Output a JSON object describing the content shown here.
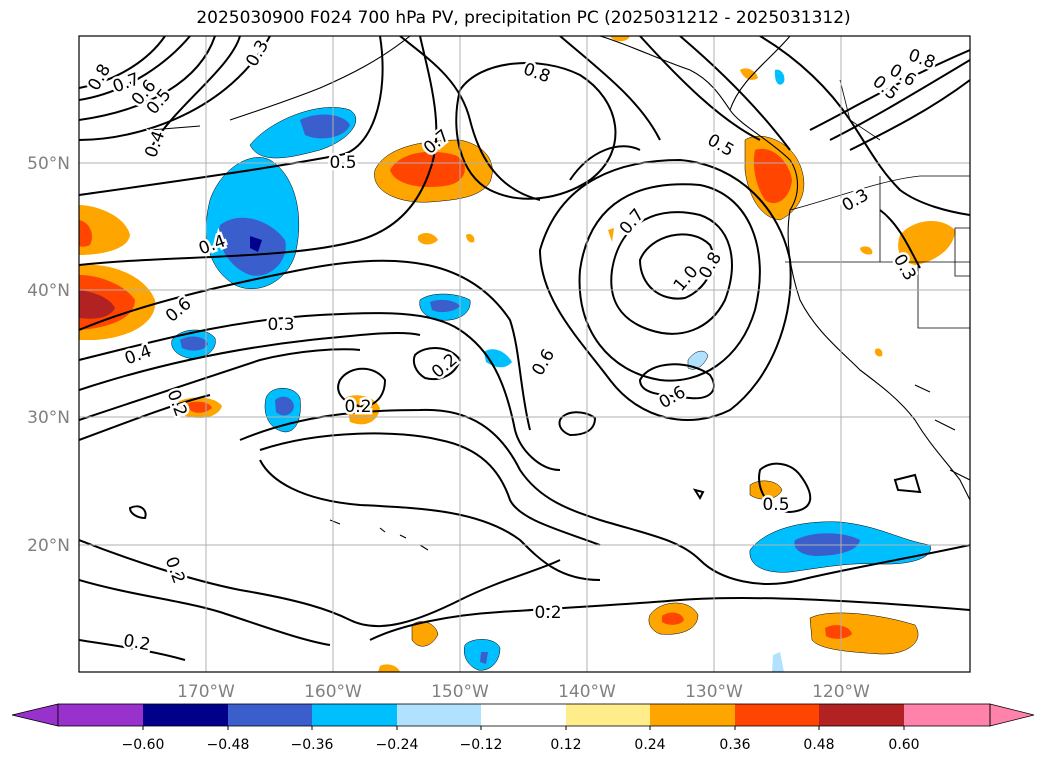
{
  "title": "2025030900 F024 700 hPa PV, precipitation PC (2025031212 - 2025031312)",
  "map": {
    "lon_ticks": [
      "170°W",
      "160°W",
      "150°W",
      "140°W",
      "130°W",
      "120°W"
    ],
    "lat_ticks": [
      "50°N",
      "40°N",
      "30°N",
      "20°N"
    ],
    "gridlines": true,
    "tick_color": "#808080"
  },
  "contour_labels": [
    "0.8",
    "0.7",
    "0.6",
    "0.5",
    "0.4",
    "0.3",
    "0.5",
    "0.7",
    "0.8",
    "0.5",
    "0.4",
    "0.6",
    "0.4",
    "0.3",
    "0.2",
    "0.2",
    "0.2",
    "0.6",
    "0.6",
    "0.7",
    "1.0",
    "0.8",
    "0.5",
    "0.2",
    "0.2",
    "0.2",
    "0.3",
    "0.3",
    "0.8",
    "0.6",
    "0.5"
  ],
  "colorbar": {
    "labels": [
      "−0.60",
      "−0.48",
      "−0.36",
      "−0.24",
      "−0.12",
      "0.12",
      "0.24",
      "0.36",
      "0.48",
      "0.60"
    ],
    "colors": [
      "#9932cc",
      "#00008b",
      "#3a5fcd",
      "#00bfff",
      "#b0e2ff",
      "#ffffff",
      "#ffec8b",
      "#ffa500",
      "#ff4500",
      "#b22222",
      "#ff82ab"
    ]
  }
}
